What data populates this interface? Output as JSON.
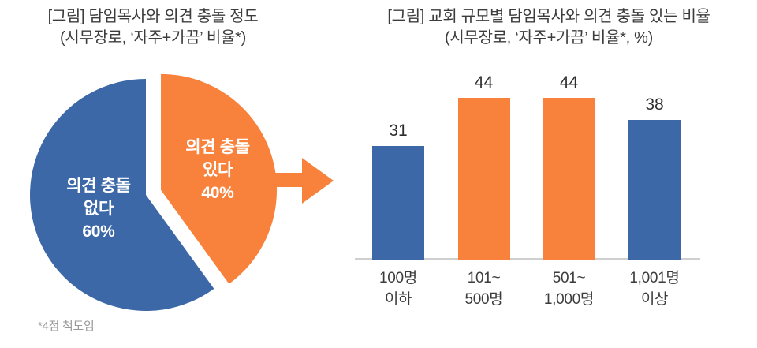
{
  "chart_data": [
    {
      "type": "pie",
      "title": "[그림] 담임목사와 의견 충돌 정도",
      "subtitle": "(시무장로, ‘자주+가끔’ 비율*)",
      "footnote": "*4점 척도임",
      "start_angle_deg": 0,
      "direction": "clockwise",
      "slices": [
        {
          "name": "의견 충돌 있다",
          "label_lines": [
            "의견 충돌",
            "있다"
          ],
          "pct_label": "40%",
          "value": 40,
          "color": "#F8823C",
          "exploded": true
        },
        {
          "name": "의견 충돌 없다",
          "label_lines": [
            "의견 충돌",
            "없다"
          ],
          "pct_label": "60%",
          "value": 60,
          "color": "#3C68A7",
          "exploded": false
        }
      ],
      "callout_arrow": {
        "direction": "right",
        "color": "#F8823C"
      }
    },
    {
      "type": "bar",
      "title": "[그림] 교회 규모별 담임목사와 의견 충돌 있는 비율",
      "subtitle": "(시무장로, ‘자주+가끔’ 비율*, %)",
      "categories": [
        [
          "100명",
          "이하"
        ],
        [
          "101~",
          "500명"
        ],
        [
          "501~",
          "1,000명"
        ],
        [
          "1,001명",
          "이상"
        ]
      ],
      "values": [
        31,
        44,
        44,
        38
      ],
      "bar_colors": [
        "#3C68A7",
        "#F8823C",
        "#F8823C",
        "#3C68A7"
      ],
      "ylim": [
        0,
        51
      ],
      "grid": false,
      "legend": false,
      "axis_line_color": "#cfcfcf"
    }
  ]
}
